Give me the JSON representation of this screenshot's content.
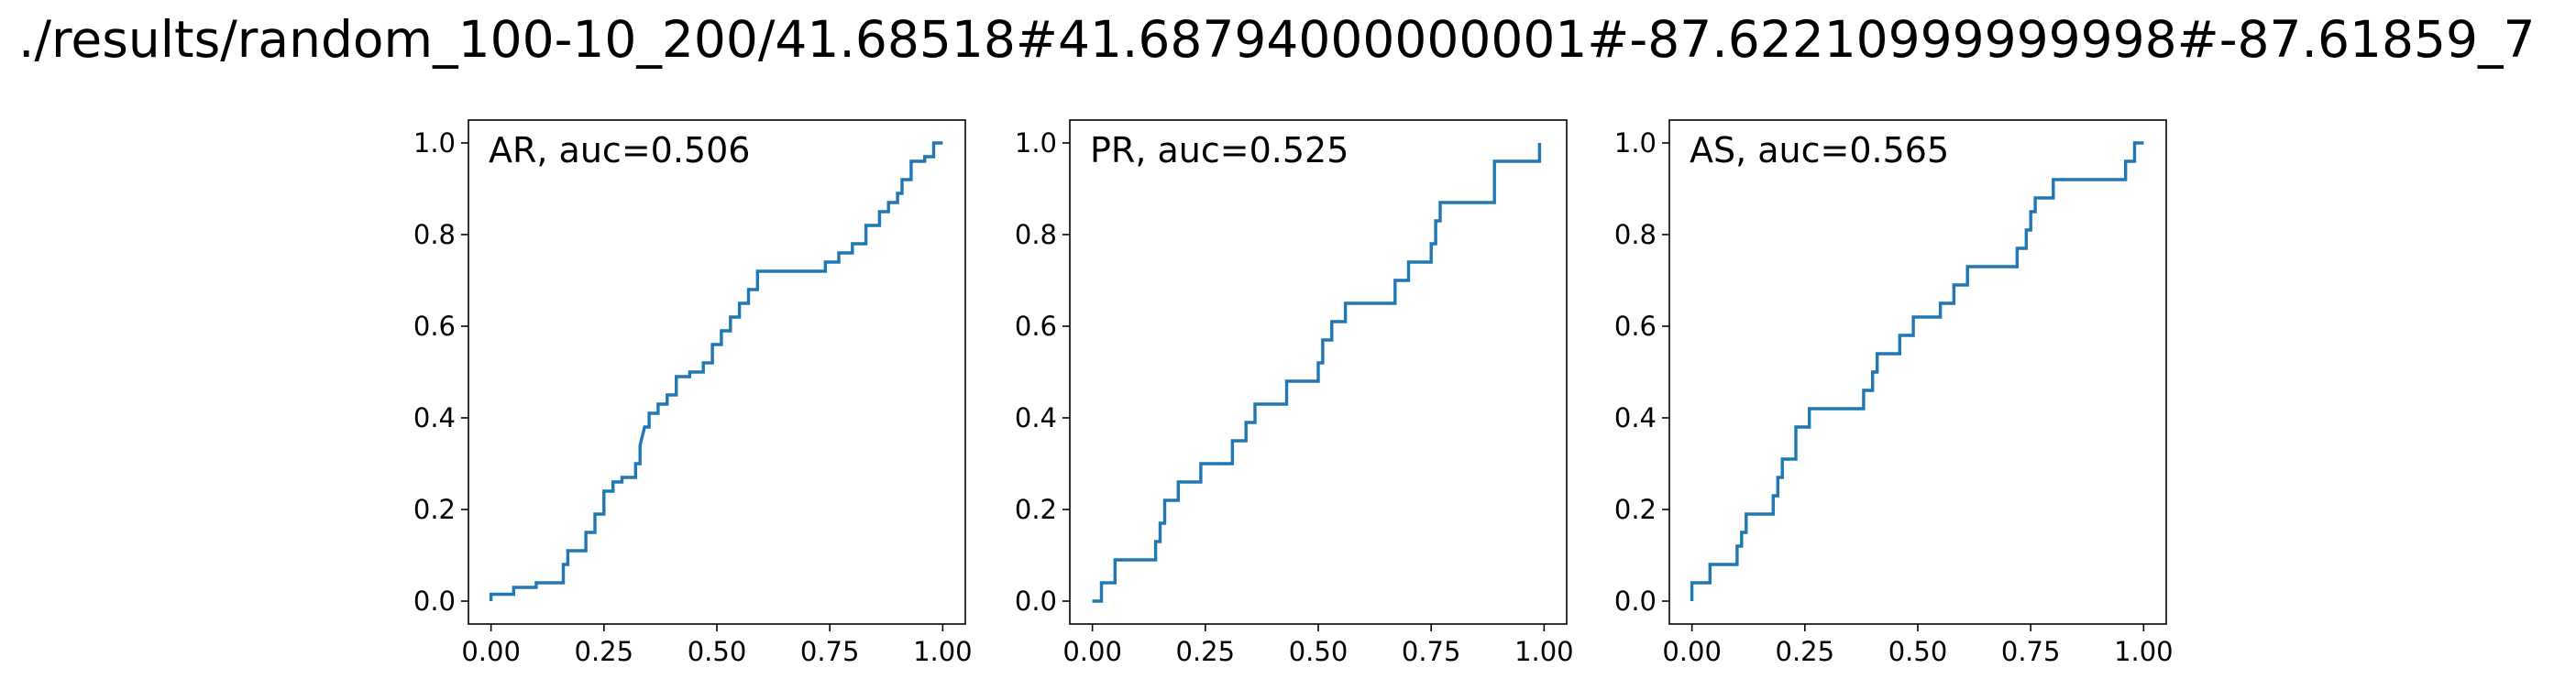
{
  "title": "./results/random_100-10_200/41.68518#41.68794000000001#-87.62210999999998#-87.61859_7",
  "chart_data": [
    {
      "type": "line",
      "title": "AR, auc=0.506",
      "xlim": [
        -0.05,
        1.05
      ],
      "ylim": [
        -0.05,
        1.05
      ],
      "xticks": [
        {
          "value": 0,
          "label": "0.00"
        },
        0.25,
        {
          "value": 0.5,
          "label": "0.50"
        },
        0.75,
        {
          "value": 1,
          "label": "1.00"
        }
      ],
      "yticks": [
        {
          "value": 0,
          "label": "0.0"
        },
        0.2,
        0.4,
        0.6,
        0.8,
        {
          "value": 1,
          "label": "1.0"
        }
      ],
      "color": "#1f77b4",
      "x": [
        0,
        0,
        0.05,
        0.05,
        0.1,
        0.1,
        0.16,
        0.16,
        0.17,
        0.17,
        0.21,
        0.21,
        0.23,
        0.23,
        0.25,
        0.25,
        0.27,
        0.27,
        0.29,
        0.29,
        0.32,
        0.32,
        0.33,
        0.33,
        0.34,
        0.35,
        0.35,
        0.37,
        0.37,
        0.39,
        0.39,
        0.41,
        0.41,
        0.44,
        0.44,
        0.47,
        0.47,
        0.49,
        0.49,
        0.51,
        0.51,
        0.53,
        0.53,
        0.55,
        0.55,
        0.57,
        0.57,
        0.59,
        0.59,
        0.74,
        0.74,
        0.77,
        0.77,
        0.8,
        0.8,
        0.83,
        0.83,
        0.86,
        0.86,
        0.88,
        0.88,
        0.9,
        0.9,
        0.91,
        0.91,
        0.93,
        0.93,
        0.96,
        0.96,
        0.98,
        0.98,
        1.0
      ],
      "y": [
        0,
        0.015,
        0.015,
        0.03,
        0.03,
        0.04,
        0.04,
        0.08,
        0.08,
        0.11,
        0.11,
        0.15,
        0.15,
        0.19,
        0.19,
        0.24,
        0.24,
        0.26,
        0.26,
        0.27,
        0.27,
        0.3,
        0.3,
        0.34,
        0.38,
        0.38,
        0.41,
        0.41,
        0.43,
        0.43,
        0.45,
        0.45,
        0.49,
        0.49,
        0.5,
        0.5,
        0.52,
        0.52,
        0.56,
        0.56,
        0.59,
        0.59,
        0.62,
        0.62,
        0.65,
        0.65,
        0.68,
        0.68,
        0.72,
        0.72,
        0.74,
        0.74,
        0.76,
        0.76,
        0.78,
        0.78,
        0.82,
        0.82,
        0.85,
        0.85,
        0.87,
        0.87,
        0.89,
        0.89,
        0.92,
        0.92,
        0.96,
        0.96,
        0.97,
        0.97,
        1.0,
        1.0
      ]
    },
    {
      "type": "line",
      "title": "PR, auc=0.525",
      "xlim": [
        -0.05,
        1.05
      ],
      "ylim": [
        -0.05,
        1.05
      ],
      "xticks": [
        {
          "value": 0,
          "label": "0.00"
        },
        0.25,
        {
          "value": 0.5,
          "label": "0.50"
        },
        0.75,
        {
          "value": 1,
          "label": "1.00"
        }
      ],
      "yticks": [
        {
          "value": 0,
          "label": "0.0"
        },
        0.2,
        0.4,
        0.6,
        0.8,
        {
          "value": 1,
          "label": "1.0"
        }
      ],
      "color": "#1f77b4",
      "x": [
        0,
        0.02,
        0.02,
        0.05,
        0.05,
        0.14,
        0.14,
        0.15,
        0.15,
        0.16,
        0.16,
        0.19,
        0.19,
        0.24,
        0.24,
        0.31,
        0.31,
        0.34,
        0.34,
        0.36,
        0.36,
        0.43,
        0.43,
        0.5,
        0.5,
        0.51,
        0.51,
        0.53,
        0.53,
        0.56,
        0.56,
        0.67,
        0.67,
        0.7,
        0.7,
        0.75,
        0.75,
        0.76,
        0.76,
        0.77,
        0.77,
        0.89,
        0.89,
        0.99,
        0.99
      ],
      "y": [
        0,
        0,
        0.04,
        0.04,
        0.09,
        0.09,
        0.13,
        0.13,
        0.17,
        0.17,
        0.22,
        0.22,
        0.26,
        0.26,
        0.3,
        0.3,
        0.35,
        0.35,
        0.39,
        0.39,
        0.43,
        0.43,
        0.48,
        0.48,
        0.52,
        0.52,
        0.57,
        0.57,
        0.61,
        0.61,
        0.65,
        0.65,
        0.7,
        0.7,
        0.74,
        0.74,
        0.78,
        0.78,
        0.83,
        0.83,
        0.87,
        0.87,
        0.96,
        0.96,
        1.0
      ]
    },
    {
      "type": "line",
      "title": "AS, auc=0.565",
      "xlim": [
        -0.05,
        1.05
      ],
      "ylim": [
        -0.05,
        1.05
      ],
      "xticks": [
        {
          "value": 0,
          "label": "0.00"
        },
        0.25,
        {
          "value": 0.5,
          "label": "0.50"
        },
        0.75,
        {
          "value": 1,
          "label": "1.00"
        }
      ],
      "yticks": [
        {
          "value": 0,
          "label": "0.0"
        },
        0.2,
        0.4,
        0.6,
        0.8,
        {
          "value": 1,
          "label": "1.0"
        }
      ],
      "color": "#1f77b4",
      "x": [
        0,
        0,
        0.04,
        0.04,
        0.1,
        0.1,
        0.11,
        0.11,
        0.12,
        0.12,
        0.18,
        0.18,
        0.19,
        0.19,
        0.2,
        0.2,
        0.23,
        0.23,
        0.26,
        0.26,
        0.38,
        0.38,
        0.4,
        0.4,
        0.41,
        0.41,
        0.46,
        0.46,
        0.49,
        0.49,
        0.55,
        0.55,
        0.58,
        0.58,
        0.61,
        0.61,
        0.72,
        0.72,
        0.74,
        0.74,
        0.75,
        0.75,
        0.76,
        0.76,
        0.8,
        0.8,
        0.96,
        0.96,
        0.98,
        0.98,
        1.0
      ],
      "y": [
        0,
        0.04,
        0.04,
        0.08,
        0.08,
        0.12,
        0.12,
        0.15,
        0.15,
        0.19,
        0.19,
        0.23,
        0.23,
        0.27,
        0.27,
        0.31,
        0.31,
        0.38,
        0.38,
        0.42,
        0.42,
        0.46,
        0.46,
        0.5,
        0.5,
        0.54,
        0.54,
        0.58,
        0.58,
        0.62,
        0.62,
        0.65,
        0.65,
        0.69,
        0.69,
        0.73,
        0.73,
        0.77,
        0.77,
        0.81,
        0.81,
        0.85,
        0.85,
        0.88,
        0.88,
        0.92,
        0.92,
        0.96,
        0.96,
        1.0,
        1.0
      ]
    }
  ]
}
